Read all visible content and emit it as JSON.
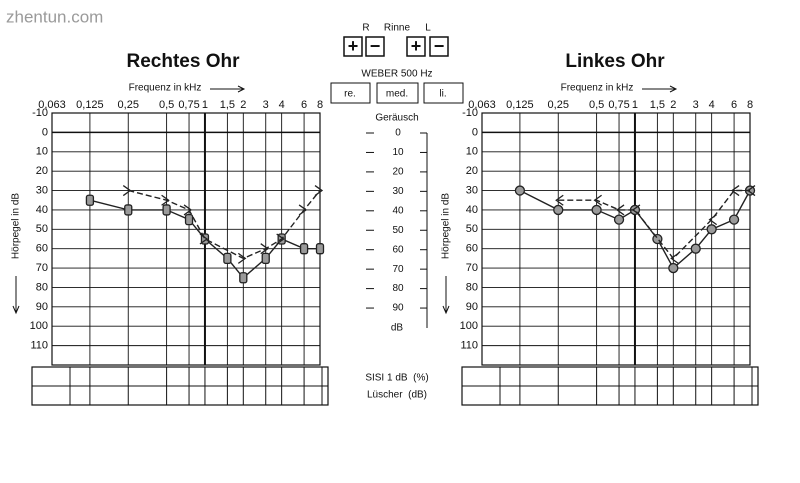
{
  "watermark": "zhentun.com",
  "chart_data": [
    {
      "type": "line",
      "title": "Rechtes Ohr",
      "xlabel": "Frequenz in kHz",
      "ylabel": "Hörpegel in dB",
      "log_x": true,
      "xlim": [
        0.063,
        8
      ],
      "xticks": [
        {
          "value": 0.063,
          "label": "0,063"
        },
        {
          "value": 0.125,
          "label": "0,125"
        },
        {
          "value": 0.25,
          "label": "0,25"
        },
        {
          "value": 0.5,
          "label": "0,5"
        },
        {
          "value": 0.75,
          "label": "0,75"
        },
        1,
        {
          "value": 1.5,
          "label": "1,5"
        },
        2,
        3,
        4,
        6,
        8
      ],
      "ylim": [
        120,
        -10
      ],
      "yticks": [
        -10,
        0,
        10,
        20,
        30,
        40,
        50,
        60,
        70,
        80,
        90,
        100,
        110
      ],
      "grid": true,
      "series": [
        {
          "color": "#222222",
          "line": "solid",
          "marker": "square",
          "x": [
            0.125,
            0.25,
            0.5,
            0.75,
            1,
            1.5,
            2,
            3,
            4,
            6,
            8
          ],
          "values": [
            35,
            40,
            40,
            45,
            55,
            65,
            75,
            65,
            55,
            60,
            60
          ]
        },
        {
          "color": "#222222",
          "line": "dashed",
          "marker": "gt",
          "x": [
            0.25,
            0.5,
            0.75,
            1,
            2,
            3,
            4,
            6,
            8
          ],
          "values": [
            30,
            35,
            40,
            55,
            65,
            60,
            55,
            40,
            30
          ]
        }
      ]
    },
    {
      "type": "line",
      "title": "Linkes Ohr",
      "xlabel": "Frequenz in kHz",
      "ylabel": "Hörpegel in dB",
      "log_x": true,
      "xlim": [
        0.063,
        8
      ],
      "xticks": [
        {
          "value": 0.063,
          "label": "0,063"
        },
        {
          "value": 0.125,
          "label": "0,125"
        },
        {
          "value": 0.25,
          "label": "0,25"
        },
        {
          "value": 0.5,
          "label": "0,5"
        },
        {
          "value": 0.75,
          "label": "0,75"
        },
        1,
        {
          "value": 1.5,
          "label": "1,5"
        },
        2,
        3,
        4,
        6,
        8
      ],
      "ylim": [
        120,
        -10
      ],
      "yticks": [
        -10,
        0,
        10,
        20,
        30,
        40,
        50,
        60,
        70,
        80,
        90,
        100,
        110
      ],
      "grid": true,
      "series": [
        {
          "color": "#222222",
          "line": "solid",
          "marker": "circle",
          "x": [
            0.125,
            0.25,
            0.5,
            0.75,
            1,
            1.5,
            2,
            3,
            4,
            6,
            8
          ],
          "values": [
            30,
            40,
            40,
            45,
            40,
            55,
            70,
            60,
            50,
            45,
            30
          ]
        },
        {
          "color": "#222222",
          "line": "dashed",
          "marker": "lt",
          "x": [
            0.25,
            0.5,
            0.75,
            1,
            2,
            4,
            6,
            8
          ],
          "values": [
            35,
            35,
            40,
            40,
            65,
            45,
            30,
            30
          ]
        }
      ]
    }
  ],
  "controls": {
    "rinne": {
      "right": "R",
      "label": "Rinne",
      "left": "L",
      "buttons": [
        "+",
        "−",
        "+",
        "−"
      ]
    },
    "weber": {
      "label": "WEBER 500 Hz",
      "buttons": [
        "re.",
        "med.",
        "li."
      ]
    },
    "noise": {
      "label": "Geräusch",
      "ticks": [
        0,
        10,
        20,
        30,
        40,
        50,
        60,
        70,
        80,
        90
      ],
      "unit": "dB"
    },
    "sisi": "SISI 1 dB  (%)",
    "luescher": "Lüscher  (dB)"
  }
}
